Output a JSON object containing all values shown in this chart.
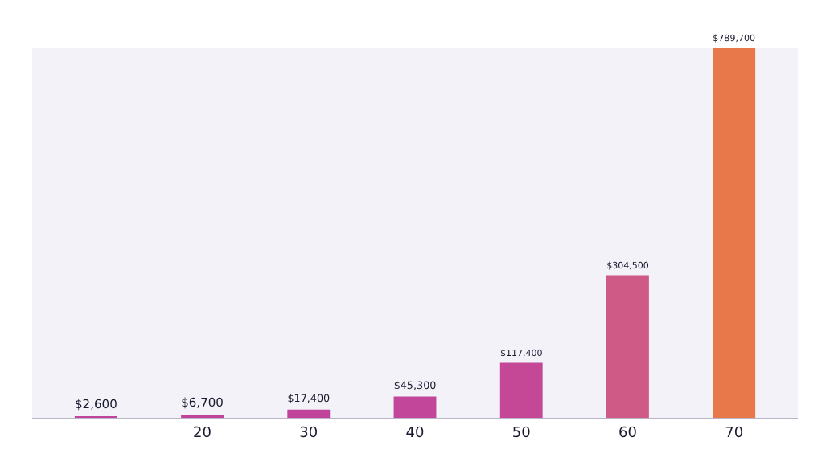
{
  "chart_data": {
    "type": "bar",
    "categories": [
      null,
      "20",
      "30",
      "40",
      "50",
      "60",
      "70"
    ],
    "values": [
      2600,
      6700,
      17400,
      45300,
      117400,
      304500,
      789700
    ],
    "value_labels": [
      "$2,600",
      "$6,700",
      "$17,400",
      "$45,300",
      "$117,400",
      "$304,500",
      "$789,700"
    ],
    "colors": [
      "#c0449a",
      "#c0449a",
      "#c0449a",
      "#c2469a",
      "#c44896",
      "#d05a86",
      "#e8784a"
    ]
  }
}
